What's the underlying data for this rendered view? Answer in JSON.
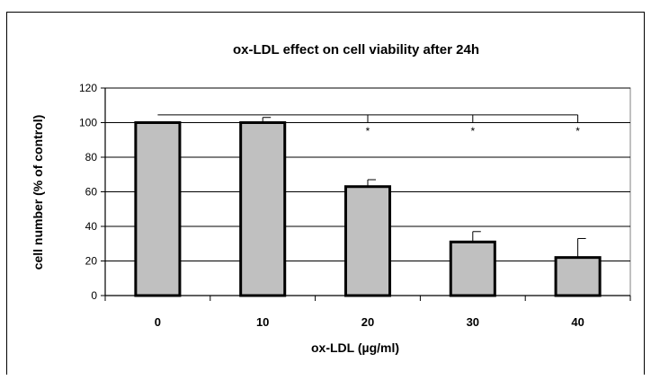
{
  "chart_data": {
    "type": "bar",
    "title": "ox-LDL effect on cell viability after 24h",
    "xlabel": "ox-LDL (µg/ml)",
    "ylabel": "cell number (% of control)",
    "categories": [
      "0",
      "10",
      "20",
      "30",
      "40"
    ],
    "values": [
      100,
      100,
      63,
      31,
      22
    ],
    "errors": [
      0,
      3,
      4,
      6,
      11
    ],
    "ylim": [
      0,
      120
    ],
    "y_ticks": [
      "0",
      "20",
      "40",
      "60",
      "80",
      "100",
      "120"
    ],
    "grid": true,
    "legend": "none",
    "significance": {
      "bracket_level": 120,
      "reference_category": "0",
      "marked_categories": [
        "20",
        "30",
        "40"
      ],
      "marker": "*"
    },
    "colors": {
      "bar_fill": "#c0c0c0",
      "bar_stroke": "#000000",
      "plot_background": "#ffffff",
      "gridline": "#000000"
    }
  }
}
